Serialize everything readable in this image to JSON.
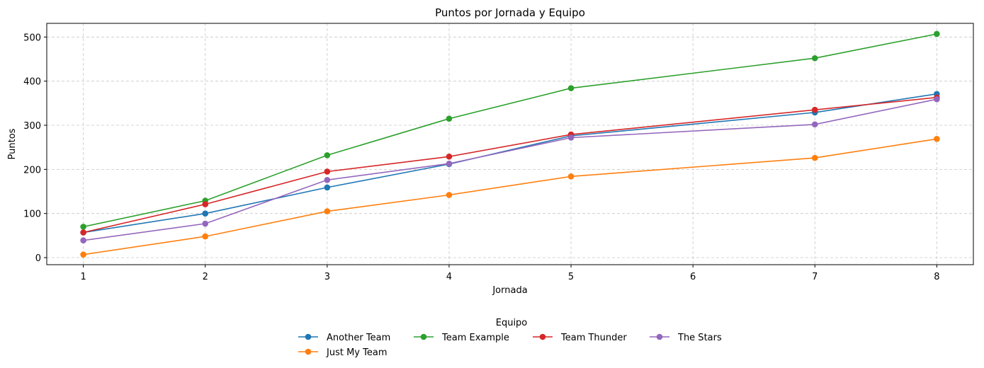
{
  "chart_data": {
    "type": "line",
    "title": "Puntos por Jornada y Equipo",
    "xlabel": "Jornada",
    "ylabel": "Puntos",
    "xlim": [
      0.7,
      8.3
    ],
    "ylim": [
      -16,
      531
    ],
    "xticks": [
      1,
      2,
      3,
      4,
      5,
      6,
      7,
      8
    ],
    "yticks": [
      0,
      100,
      200,
      300,
      400,
      500
    ],
    "grid": true,
    "legend": {
      "title": "Equipo",
      "placement": "bottom-center"
    },
    "series": [
      {
        "name": "Another Team",
        "color": "#1f77b4",
        "x": [
          1,
          2,
          3,
          4,
          5,
          7,
          8
        ],
        "y": [
          57,
          100,
          159,
          212,
          276,
          329,
          371
        ]
      },
      {
        "name": "Just My Team",
        "color": "#ff7f0e",
        "x": [
          1,
          2,
          3,
          4,
          5,
          7,
          8
        ],
        "y": [
          7,
          48,
          105,
          142,
          184,
          226,
          269
        ]
      },
      {
        "name": "Team Example",
        "color": "#2ca02c",
        "x": [
          1,
          2,
          3,
          4,
          5,
          7,
          8
        ],
        "y": [
          70,
          129,
          232,
          315,
          384,
          452,
          507
        ]
      },
      {
        "name": "Team Thunder",
        "color": "#d62728",
        "x": [
          1,
          2,
          3,
          4,
          5,
          7,
          8
        ],
        "y": [
          57,
          121,
          195,
          229,
          279,
          335,
          363
        ]
      },
      {
        "name": "The Stars",
        "color": "#9467bd",
        "x": [
          1,
          2,
          3,
          4,
          5,
          7,
          8
        ],
        "y": [
          39,
          77,
          176,
          213,
          272,
          302,
          359
        ]
      }
    ]
  }
}
